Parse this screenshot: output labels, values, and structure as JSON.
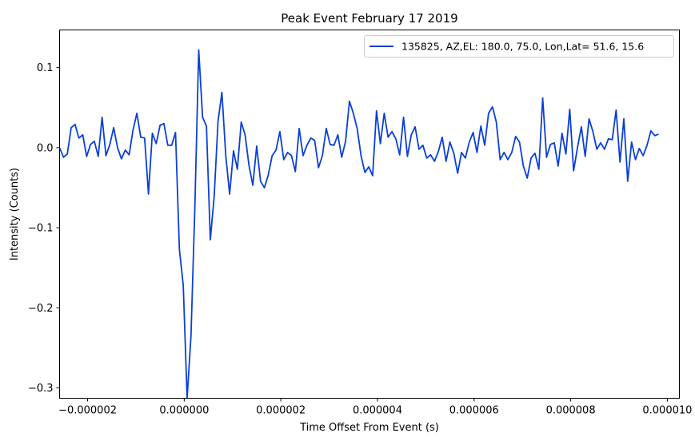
{
  "chart_data": {
    "type": "line",
    "title": "Peak Event February 17 2019",
    "xlabel": "Time Offset From Event (s)",
    "ylabel": "Intensity (Counts)",
    "xlim": [
      -2.58e-06,
      1.025e-05
    ],
    "ylim": [
      -0.313,
      0.147
    ],
    "grid": false,
    "legend_position": "top-right",
    "xticks": [
      {
        "value": -2e-06,
        "label": "−0.000002"
      },
      {
        "value": 0.0,
        "label": "0.000000"
      },
      {
        "value": 2e-06,
        "label": "0.000002"
      },
      {
        "value": 4e-06,
        "label": "0.000004"
      },
      {
        "value": 6e-06,
        "label": "0.000006"
      },
      {
        "value": 8e-06,
        "label": "0.000008"
      },
      {
        "value": 1e-05,
        "label": "0.000010"
      }
    ],
    "yticks": [
      {
        "value": 0.1,
        "label": "0.1"
      },
      {
        "value": 0.0,
        "label": "0.0"
      },
      {
        "value": -0.1,
        "label": "−0.1"
      },
      {
        "value": -0.2,
        "label": "−0.2"
      },
      {
        "value": -0.3,
        "label": "−0.3"
      }
    ],
    "series": [
      {
        "name": "135825, AZ,EL: 180.0, 75.0, Lon,Lat= 51.6, 15.6",
        "color": "#0a3fd8",
        "x_start": -2.58e-06,
        "x_step": 8e-08,
        "values": [
          0.0,
          -0.012,
          -0.008,
          0.025,
          0.029,
          0.012,
          0.016,
          -0.011,
          0.004,
          0.008,
          -0.011,
          0.038,
          -0.01,
          0.004,
          0.025,
          0.0,
          -0.014,
          -0.003,
          -0.009,
          0.022,
          0.043,
          0.013,
          0.012,
          -0.058,
          0.018,
          0.005,
          0.028,
          0.03,
          0.003,
          0.003,
          0.019,
          -0.127,
          -0.172,
          -0.313,
          -0.235,
          -0.075,
          0.122,
          0.038,
          0.027,
          -0.115,
          -0.061,
          0.033,
          0.069,
          -0.01,
          -0.058,
          -0.004,
          -0.027,
          0.032,
          0.016,
          -0.022,
          -0.047,
          0.002,
          -0.042,
          -0.05,
          -0.034,
          -0.01,
          -0.003,
          0.02,
          -0.015,
          -0.006,
          -0.01,
          -0.03,
          0.024,
          -0.01,
          0.003,
          0.012,
          0.009,
          -0.025,
          -0.01,
          0.024,
          0.004,
          0.003,
          0.016,
          -0.012,
          0.008,
          0.058,
          0.043,
          0.024,
          -0.01,
          -0.031,
          -0.024,
          -0.035,
          0.046,
          0.005,
          0.043,
          0.013,
          0.02,
          0.011,
          -0.009,
          0.038,
          -0.011,
          0.016,
          0.026,
          -0.002,
          0.003,
          -0.013,
          -0.009,
          -0.017,
          -0.005,
          0.013,
          -0.017,
          0.007,
          -0.007,
          -0.032,
          -0.006,
          -0.013,
          0.007,
          0.019,
          -0.006,
          0.027,
          0.003,
          0.043,
          0.051,
          0.032,
          -0.015,
          -0.006,
          -0.015,
          -0.006,
          0.014,
          0.007,
          -0.023,
          -0.038,
          -0.013,
          -0.007,
          -0.027,
          0.062,
          -0.012,
          0.004,
          0.006,
          -0.023,
          0.018,
          -0.008,
          0.048,
          -0.029,
          0.0,
          0.026,
          -0.011,
          0.036,
          0.02,
          -0.002,
          0.006,
          -0.002,
          0.011,
          0.01,
          0.047,
          -0.018,
          0.036,
          -0.042,
          0.007,
          -0.015,
          -0.001,
          -0.01,
          0.003,
          0.021,
          0.015,
          0.017
        ]
      }
    ]
  }
}
